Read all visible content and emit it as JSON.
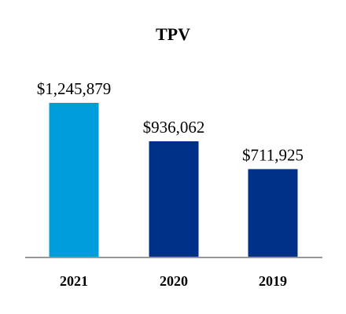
{
  "chart_data": {
    "type": "bar",
    "title": "TPV",
    "categories": [
      "2021",
      "2020",
      "2019"
    ],
    "values": [
      1245879,
      936062,
      711925
    ],
    "data_labels": [
      "$1,245,879",
      "$936,062",
      "$711,925"
    ],
    "colors": [
      "#009ddc",
      "#003087",
      "#003087"
    ],
    "axis_color": "#999999",
    "text_color": "#000000",
    "ylim": [
      0,
      1245879
    ],
    "grid": false,
    "legend": "none"
  }
}
